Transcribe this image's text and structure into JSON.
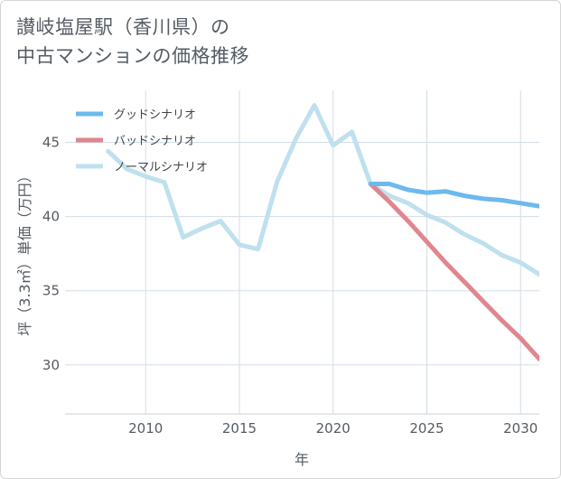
{
  "title_line1": "讃岐塩屋駅（香川県）の",
  "title_line2": "中古マンションの価格推移",
  "chart_data": {
    "type": "line",
    "xlabel": "年",
    "ylabel": "坪（3.3㎡）単価（万円）",
    "xlim": [
      2005.7,
      2031
    ],
    "ylim": [
      26.7,
      48.5
    ],
    "xticks": [
      2010,
      2015,
      2020,
      2025,
      2030
    ],
    "yticks": [
      30,
      35,
      40,
      45
    ],
    "legend_position": "top-left",
    "series": [
      {
        "name": "グッドシナリオ",
        "color": "#6db9ee",
        "x": [
          2022,
          2023,
          2024,
          2025,
          2026,
          2027,
          2028,
          2029,
          2030,
          2031
        ],
        "y": [
          42.2,
          42.2,
          41.8,
          41.6,
          41.7,
          41.4,
          41.2,
          41.1,
          40.9,
          40.7
        ]
      },
      {
        "name": "バッドシナリオ",
        "color": "#e0868e",
        "x": [
          2022,
          2023,
          2024,
          2025,
          2026,
          2027,
          2028,
          2029,
          2030,
          2031
        ],
        "y": [
          42.2,
          41.0,
          39.7,
          38.3,
          36.9,
          35.6,
          34.3,
          33.0,
          31.8,
          30.4
        ]
      },
      {
        "name": "ノーマルシナリオ",
        "color": "#bfe0ee",
        "x": [
          2008,
          2009,
          2010,
          2011,
          2012,
          2013,
          2014,
          2015,
          2016,
          2017,
          2018,
          2019,
          2020,
          2021,
          2022,
          2023,
          2024,
          2025,
          2026,
          2027,
          2028,
          2029,
          2030,
          2031
        ],
        "y": [
          44.4,
          43.2,
          42.7,
          42.3,
          38.6,
          39.2,
          39.7,
          38.1,
          37.8,
          42.3,
          45.2,
          47.5,
          44.8,
          45.7,
          42.2,
          41.4,
          40.9,
          40.1,
          39.6,
          38.8,
          38.2,
          37.4,
          36.9,
          36.1
        ]
      }
    ]
  }
}
